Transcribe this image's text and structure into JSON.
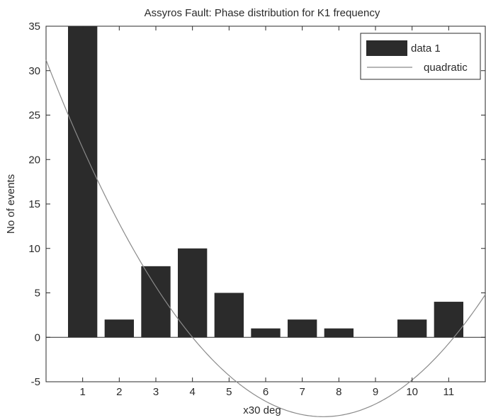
{
  "chart_data": {
    "type": "bar",
    "title": "Assyros Fault: Phase distribution for K1 frequency",
    "xlabel": "x30 deg",
    "ylabel": "No of events",
    "xlim": [
      0,
      12
    ],
    "ylim": [
      -5,
      35
    ],
    "xticks": [
      1,
      2,
      3,
      4,
      5,
      6,
      7,
      8,
      9,
      10,
      11
    ],
    "yticks": [
      -5,
      0,
      5,
      10,
      15,
      20,
      25,
      30,
      35
    ],
    "series": [
      {
        "name": "data 1",
        "kind": "bar",
        "x": [
          1,
          2,
          3,
          4,
          5,
          6,
          7,
          8,
          10,
          11
        ],
        "values": [
          35,
          2,
          8,
          10,
          5,
          1,
          2,
          1,
          2,
          4
        ],
        "color": "#2b2b2b"
      },
      {
        "name": "quadratic",
        "kind": "line",
        "coefficients": [
          0.7,
          -10.6,
          31.2
        ],
        "color": "#8a8a8a"
      }
    ],
    "legend": {
      "position": "top-right",
      "entries": [
        "data 1",
        "quadratic"
      ]
    },
    "grid": false
  }
}
